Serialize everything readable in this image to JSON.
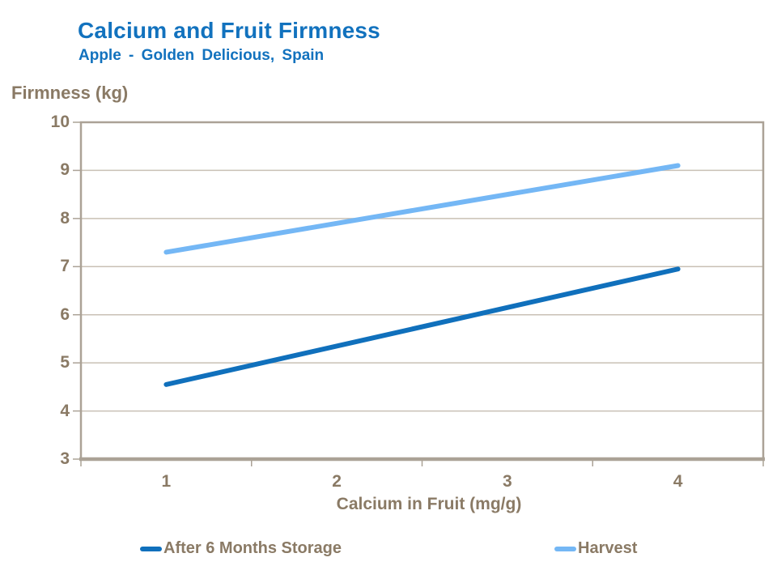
{
  "header": {
    "title": "Calcium and Fruit Firmness",
    "subtitle": "Apple - Golden Delicious, Spain"
  },
  "chart_data": {
    "type": "line",
    "title": "Calcium and Fruit Firmness",
    "subtitle": "Apple - Golden Delicious, Spain",
    "ylabel": "Firmness (kg)",
    "xlabel": "Calcium in Fruit (mg/g)",
    "ylim": [
      3,
      10
    ],
    "xlim": [
      0.5,
      4.5
    ],
    "y_ticks": [
      10,
      9,
      8,
      7,
      6,
      5,
      4,
      3
    ],
    "x_ticks": [
      1,
      2,
      3,
      4
    ],
    "grid": true,
    "legend_position": "bottom",
    "series": [
      {
        "name": "After 6 Months Storage",
        "color": "#1070BC",
        "x": [
          1,
          4
        ],
        "y": [
          4.55,
          6.95
        ]
      },
      {
        "name": "Harvest",
        "color": "#74B7F5",
        "x": [
          1,
          4
        ],
        "y": [
          7.3,
          9.1
        ]
      }
    ],
    "colors": {
      "title": "#1272BE",
      "axis_text": "#8A7A65",
      "gridline": "#C9C0B5",
      "frame": "#ABA296"
    }
  }
}
